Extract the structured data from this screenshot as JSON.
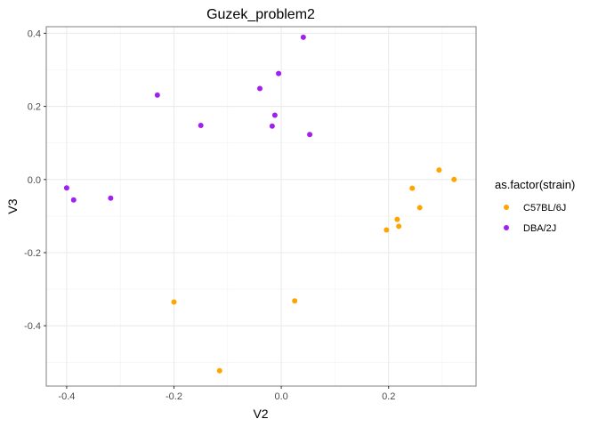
{
  "chart_data": {
    "type": "scatter",
    "title": "Guzek_problem2",
    "xlabel": "V2",
    "ylabel": "V3",
    "xlim": [
      -0.438,
      0.363
    ],
    "ylim": [
      -0.565,
      0.418
    ],
    "xticks": [
      -0.4,
      -0.2,
      0.0,
      0.2
    ],
    "xtick_labels": [
      "-0.4",
      "-0.2",
      "0.0",
      "0.2"
    ],
    "yticks": [
      -0.4,
      -0.2,
      0.0,
      0.2,
      0.4
    ],
    "ytick_labels": [
      "-0.4",
      "-0.2",
      "0.0",
      "0.2",
      "0.4"
    ],
    "grid": true,
    "legend": {
      "title": "as.factor(strain)",
      "position": "right"
    },
    "series": [
      {
        "name": "C57BL/6J",
        "color": "#FFA500",
        "points": [
          {
            "x": -0.2,
            "y": -0.335
          },
          {
            "x": -0.115,
            "y": -0.523
          },
          {
            "x": 0.025,
            "y": -0.332
          },
          {
            "x": 0.196,
            "y": -0.138
          },
          {
            "x": 0.216,
            "y": -0.109
          },
          {
            "x": 0.219,
            "y": -0.128
          },
          {
            "x": 0.244,
            "y": -0.024
          },
          {
            "x": 0.258,
            "y": -0.077
          },
          {
            "x": 0.294,
            "y": 0.026
          },
          {
            "x": 0.322,
            "y": 0.0
          }
        ]
      },
      {
        "name": "DBA/2J",
        "color": "#A020F0",
        "points": [
          {
            "x": -0.4,
            "y": -0.023
          },
          {
            "x": -0.387,
            "y": -0.056
          },
          {
            "x": -0.318,
            "y": -0.051
          },
          {
            "x": -0.231,
            "y": 0.231
          },
          {
            "x": -0.15,
            "y": 0.148
          },
          {
            "x": -0.04,
            "y": 0.249
          },
          {
            "x": -0.017,
            "y": 0.146
          },
          {
            "x": -0.012,
            "y": 0.176
          },
          {
            "x": -0.005,
            "y": 0.29
          },
          {
            "x": 0.041,
            "y": 0.389
          },
          {
            "x": 0.053,
            "y": 0.123
          }
        ]
      }
    ]
  }
}
